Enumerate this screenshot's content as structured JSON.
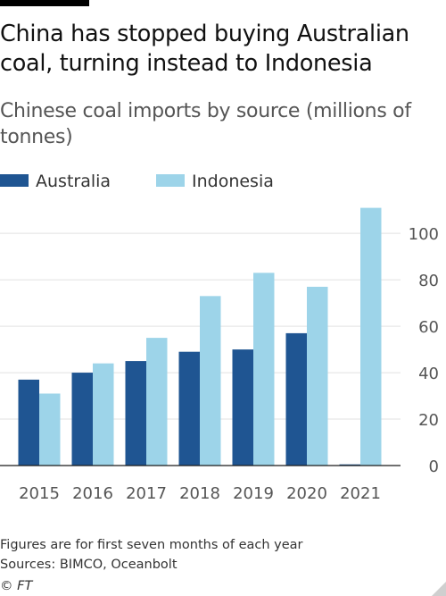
{
  "title": "China has stopped buying Australian coal, turning instead to Indonesia",
  "subtitle": "Chinese coal imports by source (millions of tonnes)",
  "footnote": "Figures are for first seven months of each year",
  "source": "Sources: BIMCO, Oceanbolt",
  "credit": "© FT",
  "colors": {
    "australia": "#1f5592",
    "indonesia": "#9dd4e9",
    "grid": "#e2e2e2",
    "axis": "#555555"
  },
  "chart_data": {
    "type": "bar",
    "categories": [
      "2015",
      "2016",
      "2017",
      "2018",
      "2019",
      "2020",
      "2021"
    ],
    "series": [
      {
        "name": "Australia",
        "values": [
          37,
          40,
          45,
          49,
          50,
          57,
          0.5
        ]
      },
      {
        "name": "Indonesia",
        "values": [
          31,
          44,
          55,
          73,
          83,
          77,
          111
        ]
      }
    ],
    "yticks": [
      0,
      20,
      40,
      60,
      80,
      100
    ],
    "ylim": [
      0,
      112
    ],
    "yaxis_side": "right",
    "legend_position": "top-left",
    "grid": true
  }
}
